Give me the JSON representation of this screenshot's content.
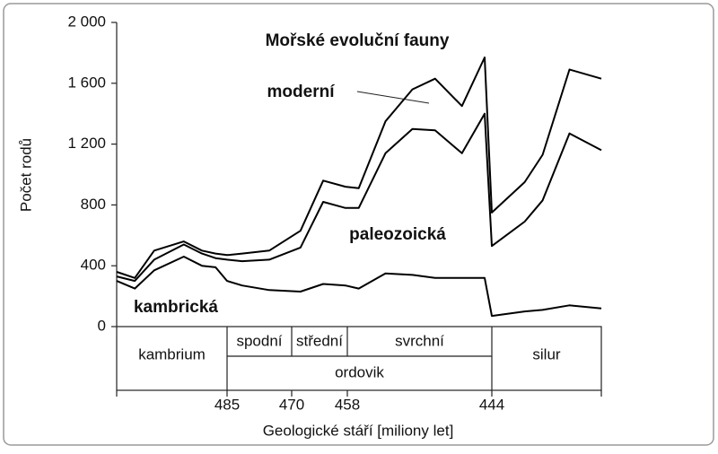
{
  "chart_data": {
    "type": "stacked-line",
    "title": "Mořské evoluční fauny",
    "ylabel": "Počet rodů",
    "xlabel": "Geologické stáří [miliony let]",
    "xlim": [
      510,
      433
    ],
    "xticks": [
      485,
      470,
      458,
      444
    ],
    "ylim": [
      0,
      2000
    ],
    "yticks": [
      0,
      400,
      800,
      {
        "value": 1200,
        "label": "1 200"
      },
      {
        "value": 1600,
        "label": "1 600"
      },
      {
        "value": 2000,
        "label": "2 000"
      }
    ],
    "x": [
      510,
      505.9,
      501.5,
      494.8,
      490.7,
      487.6,
      485,
      481.5,
      475.2,
      468.1,
      463.2,
      458.4,
      456.9,
      454.3,
      451.7,
      449.5,
      446.9,
      444.7,
      444,
      440.7,
      438.9,
      436.2,
      433
    ],
    "series": [
      {
        "name": "kambrická",
        "color": "#000000",
        "values": [
          300,
          250,
          370,
          460,
          400,
          390,
          300,
          270,
          240,
          230,
          280,
          270,
          250,
          350,
          340,
          320,
          320,
          320,
          70,
          100,
          110,
          140,
          120
        ]
      },
      {
        "name": "paleozoická",
        "color": "#000000",
        "values": [
          30,
          50,
          70,
          80,
          80,
          60,
          140,
          160,
          200,
          290,
          540,
          510,
          530,
          790,
          960,
          970,
          820,
          1080,
          460,
          590,
          720,
          1130,
          1040
        ]
      },
      {
        "name": "moderní",
        "color": "#000000",
        "values": [
          30,
          20,
          60,
          20,
          20,
          30,
          30,
          50,
          60,
          110,
          140,
          140,
          130,
          210,
          260,
          340,
          310,
          370,
          220,
          260,
          300,
          420,
          470
        ]
      }
    ],
    "periods": [
      "kambrium",
      "ordovik",
      "silur"
    ],
    "epochs": [
      "spodní",
      "střední",
      "svrchní"
    ]
  }
}
